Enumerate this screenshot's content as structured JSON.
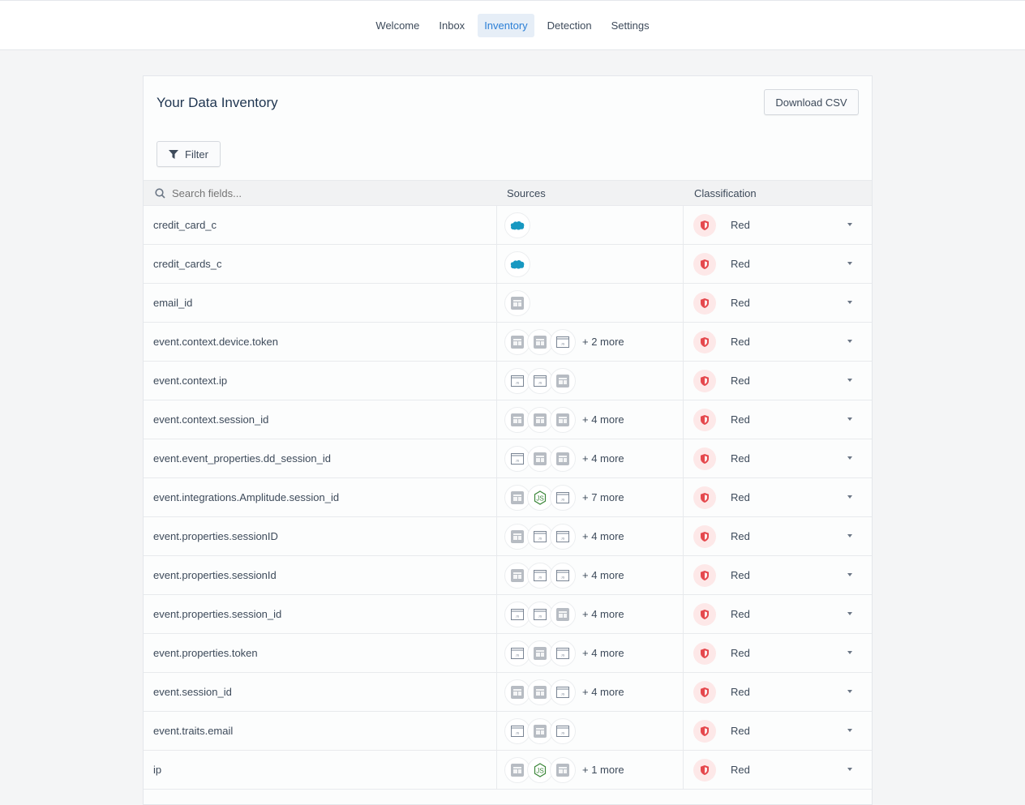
{
  "nav": {
    "tabs": [
      {
        "label": "Welcome"
      },
      {
        "label": "Inbox"
      },
      {
        "label": "Inventory",
        "active": true
      },
      {
        "label": "Detection"
      },
      {
        "label": "Settings"
      }
    ]
  },
  "page": {
    "title": "Your Data Inventory",
    "download_label": "Download CSV",
    "filter_label": "Filter"
  },
  "table": {
    "search_placeholder": "Search fields...",
    "headers": {
      "sources": "Sources",
      "classification": "Classification"
    },
    "rows": [
      {
        "field": "credit_card_c",
        "sources": [
          "salesforce"
        ],
        "more": "",
        "classification": "Red"
      },
      {
        "field": "credit_cards_c",
        "sources": [
          "salesforce"
        ],
        "more": "",
        "classification": "Red"
      },
      {
        "field": "email_id",
        "sources": [
          "app"
        ],
        "more": "",
        "classification": "Red"
      },
      {
        "field": "event.context.device.token",
        "sources": [
          "app",
          "app",
          "js"
        ],
        "more": "+ 2 more",
        "classification": "Red"
      },
      {
        "field": "event.context.ip",
        "sources": [
          "js",
          "js",
          "app"
        ],
        "more": "",
        "classification": "Red"
      },
      {
        "field": "event.context.session_id",
        "sources": [
          "app",
          "app",
          "app"
        ],
        "more": "+ 4 more",
        "classification": "Red"
      },
      {
        "field": "event.event_properties.dd_session_id",
        "sources": [
          "js",
          "app",
          "app"
        ],
        "more": "+ 4 more",
        "classification": "Red"
      },
      {
        "field": "event.integrations.Amplitude.session_id",
        "sources": [
          "app",
          "node",
          "js"
        ],
        "more": "+ 7 more",
        "classification": "Red"
      },
      {
        "field": "event.properties.sessionID",
        "sources": [
          "app",
          "js",
          "js"
        ],
        "more": "+ 4 more",
        "classification": "Red"
      },
      {
        "field": "event.properties.sessionId",
        "sources": [
          "app",
          "js",
          "js"
        ],
        "more": "+ 4 more",
        "classification": "Red"
      },
      {
        "field": "event.properties.session_id",
        "sources": [
          "js",
          "js",
          "app"
        ],
        "more": "+ 4 more",
        "classification": "Red"
      },
      {
        "field": "event.properties.token",
        "sources": [
          "js",
          "app",
          "js"
        ],
        "more": "+ 4 more",
        "classification": "Red"
      },
      {
        "field": "event.session_id",
        "sources": [
          "app",
          "app",
          "js"
        ],
        "more": "+ 4 more",
        "classification": "Red"
      },
      {
        "field": "event.traits.email",
        "sources": [
          "js",
          "app",
          "js"
        ],
        "more": "",
        "classification": "Red"
      },
      {
        "field": "ip",
        "sources": [
          "app",
          "node",
          "app"
        ],
        "more": "+ 1 more",
        "classification": "Red"
      }
    ]
  },
  "colors": {
    "accent": "#2b7fd6",
    "red": "#e5484d",
    "salesforce": "#1798c1",
    "node": "#3c873a"
  }
}
